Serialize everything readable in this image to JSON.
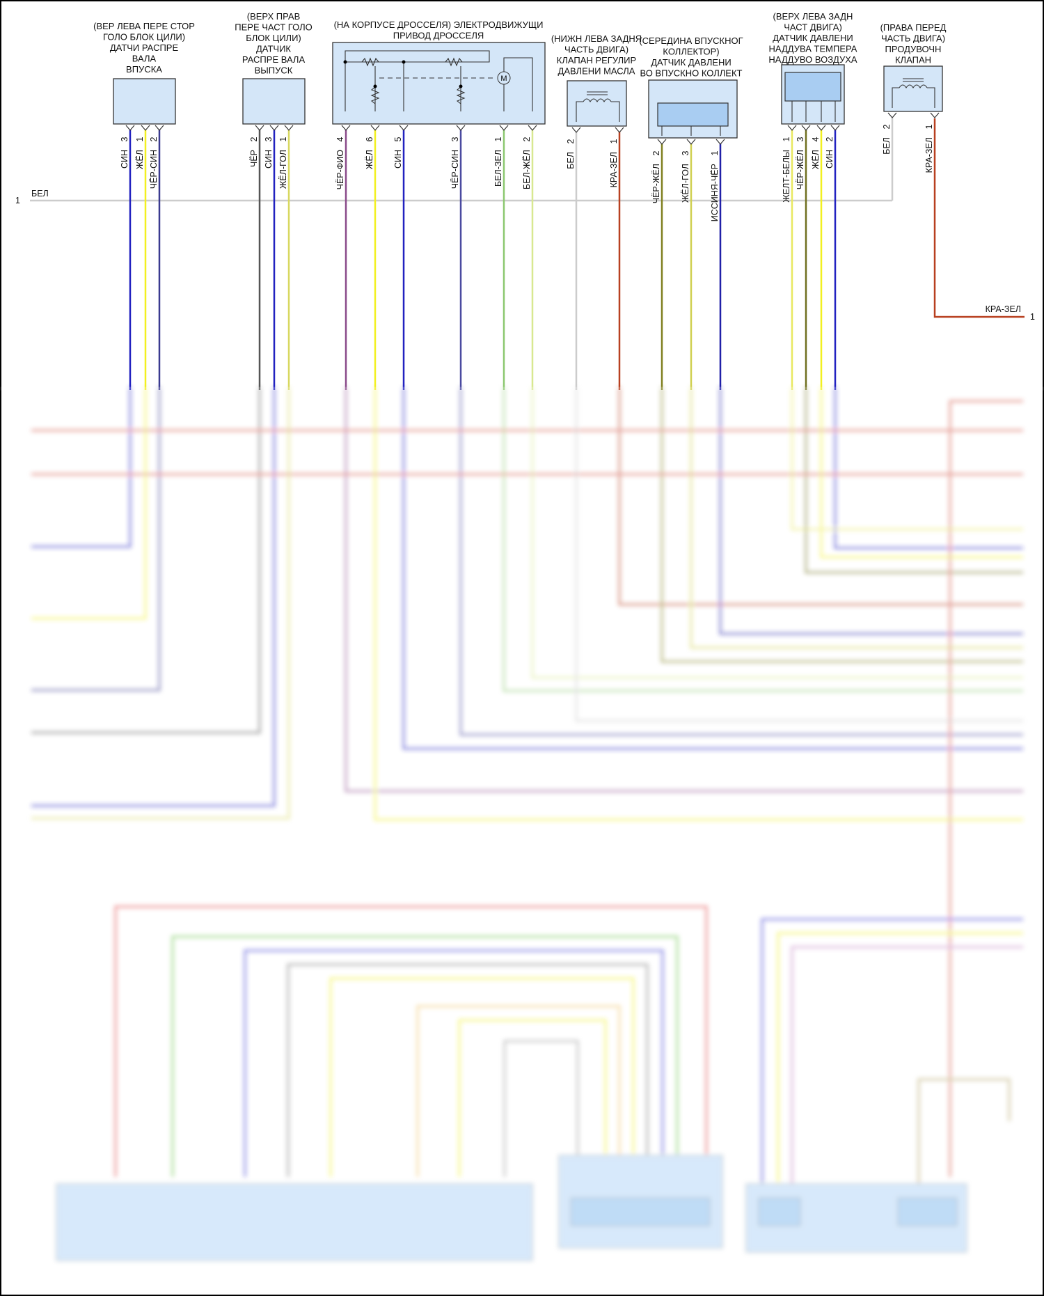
{
  "frame_border_color": "#000000",
  "bus": {
    "label": "БЕЛ",
    "pin": "1",
    "color": "#cccccc"
  },
  "components": [
    {
      "id": "intake-cam-sensor",
      "title": [
        "(ВЕР ЛЕВА ПЕРЕ СТОР",
        "ГОЛО БЛОК ЦИЛИ)",
        "ДАТЧИ РАСПРЕ",
        "ВАЛА",
        "ВПУСКА"
      ]
    },
    {
      "id": "exhaust-cam-sensor",
      "title": [
        "(ВЕРХ ПРАВ",
        "ПЕРЕ ЧАСТ ГОЛО",
        "БЛОК ЦИЛИ)",
        "ДАТЧИК",
        "РАСПРЕ ВАЛА",
        "ВЫПУСК"
      ]
    },
    {
      "id": "throttle-actuator",
      "title": [
        "(НА КОРПУСЕ ДРОССЕЛЯ) ЭЛЕКТРОДВИЖУЩИ",
        "ПРИВОД ДРОССЕЛЯ"
      ],
      "motor_symbol": "M"
    },
    {
      "id": "oil-pressure-valve",
      "title": [
        "(НИЖН ЛЕВА ЗАДНЯ",
        "ЧАСТЬ ДВИГА)",
        "КЛАПАН РЕГУЛИР",
        "ДАВЛЕНИ МАСЛА"
      ]
    },
    {
      "id": "map-sensor",
      "title": [
        "(СЕРЕДИНА ВПУСКНОГ",
        "КОЛЛЕКТОР)",
        "ДАТЧИК ДАВЛЕНИ",
        "ВО ВПУСКНО КОЛЛЕКТ"
      ]
    },
    {
      "id": "boost-sensor",
      "title": [
        "(ВЕРХ ЛЕВА ЗАДН",
        "ЧАСТ ДВИГА)",
        "ДАТЧИК ДАВЛЕНИ",
        "НАДДУВА ТЕМПЕРА",
        "НАДДУВО ВОЗДУХА"
      ]
    },
    {
      "id": "purge-valve",
      "title": [
        "(ПРАВА ПЕРЕД",
        "ЧАСТЬ ДВИГА)",
        "ПРОДУВОЧН",
        "КЛАПАН"
      ]
    }
  ],
  "wires": [
    {
      "label": "СИН",
      "pin": "3",
      "color": "#2222c0"
    },
    {
      "label": "ЖЁЛ",
      "pin": "1",
      "color": "#f2f020"
    },
    {
      "label": "ЧЁР-СИН",
      "pin": "2",
      "color": "#3a3a90"
    },
    {
      "label": "ЧЁР",
      "pin": "2",
      "color": "#555555"
    },
    {
      "label": "СИН",
      "pin": "3",
      "color": "#2222c0"
    },
    {
      "label": "ЖЁЛ-ГОЛ",
      "pin": "1",
      "color": "#d8d860"
    },
    {
      "label": "ЧЁР-ФИО",
      "pin": "4",
      "color": "#8a4a8a"
    },
    {
      "label": "ЖЁЛ",
      "pin": "6",
      "color": "#f2f020"
    },
    {
      "label": "СИН",
      "pin": "5",
      "color": "#2222c0"
    },
    {
      "label": "ЧЁР-СИН",
      "pin": "3",
      "color": "#4a4aa0"
    },
    {
      "label": "БЕЛ-ЗЕЛ",
      "pin": "1",
      "color": "#8cc870"
    },
    {
      "label": "БЕЛ-ЖЁЛ",
      "pin": "2",
      "color": "#d8e890"
    },
    {
      "label": "БЕЛ",
      "pin": "2",
      "color": "#cccccc"
    },
    {
      "label": "КРА-ЗЕЛ",
      "pin": "1",
      "color": "#b84020"
    },
    {
      "label": "ЧЁР-ЖЁЛ",
      "pin": "2",
      "color": "#808020"
    },
    {
      "label": "ЖЁЛ-ГОЛ",
      "pin": "3",
      "color": "#d0d050"
    },
    {
      "label": "ИССИНЯ-ЧЁР",
      "pin": "1",
      "color": "#2020a8"
    },
    {
      "label": "ЖЕЛТ-БЕЛЫ",
      "pin": "1",
      "color": "#e8e860"
    },
    {
      "label": "ЧЁР-ЖЁЛ",
      "pin": "3",
      "color": "#707020"
    },
    {
      "label": "ЖЁЛ",
      "pin": "4",
      "color": "#f2f020"
    },
    {
      "label": "СИН",
      "pin": "2",
      "color": "#2222c0"
    },
    {
      "label": "БЕЛ",
      "pin": "2",
      "color": "#cccccc"
    },
    {
      "label": "КРА-ЗЕЛ",
      "pin": "1",
      "color": "#b84020"
    }
  ],
  "right_exit": {
    "label": "КРА-ЗЕЛ",
    "pin": "1"
  }
}
